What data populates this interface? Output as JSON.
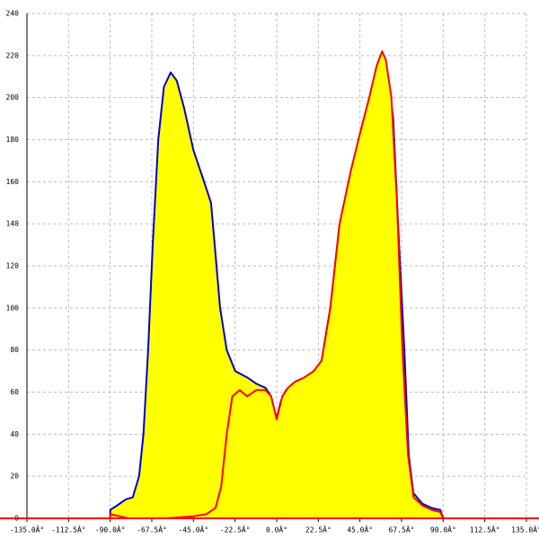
{
  "chart_data": {
    "type": "area",
    "xlim": [
      -135,
      135
    ],
    "ylim": [
      0,
      240
    ],
    "xticks": [
      {
        "value": -135,
        "label": "-135.0Â°"
      },
      {
        "value": -112.5,
        "label": "-112.5Â°"
      },
      {
        "value": -90,
        "label": "-90.0Â°"
      },
      {
        "value": -67.5,
        "label": "-67.5Â°"
      },
      {
        "value": -45,
        "label": "-45.0Â°"
      },
      {
        "value": -22.5,
        "label": "-22.5Â°"
      },
      {
        "value": 0,
        "label": "0.0Â°"
      },
      {
        "value": 22.5,
        "label": "22.5Â°"
      },
      {
        "value": 45,
        "label": "45.0Â°"
      },
      {
        "value": 67.5,
        "label": "67.5Â°"
      },
      {
        "value": 90,
        "label": "90.0Â°"
      },
      {
        "value": 112.5,
        "label": "112.5Â°"
      },
      {
        "value": 135,
        "label": "135.0Â°"
      }
    ],
    "yticks": [
      0,
      20,
      40,
      60,
      80,
      100,
      120,
      140,
      160,
      180,
      200,
      220,
      240
    ],
    "grid": true,
    "fill_color": "#ffff00",
    "series": [
      {
        "color": "#0000cc",
        "x": [
          -90,
          -90,
          -86.5,
          -81.6,
          -77.8,
          -74.4,
          -72,
          -69.5,
          -67,
          -64,
          -61,
          -57.3,
          -54,
          -50,
          -45,
          -40,
          -35.5,
          -33,
          -30.6,
          -27,
          -22.4,
          -16,
          -11,
          -6,
          -3,
          0,
          2,
          5,
          10,
          14.6,
          19.4,
          24.3,
          29,
          34,
          40,
          44.7,
          49.6,
          53.5,
          57,
          60,
          63,
          65.6,
          69,
          71.4,
          73.9,
          78.7,
          83.6,
          88.5,
          90
        ],
        "values": [
          0,
          4,
          6,
          9,
          10,
          20,
          40,
          80,
          130,
          180,
          205,
          212,
          208,
          195,
          175,
          162,
          150,
          125,
          100,
          80,
          70,
          67,
          64,
          62,
          58,
          47,
          55,
          61,
          62,
          64,
          67,
          75,
          100,
          140,
          160,
          178,
          195,
          208,
          212,
          210,
          190,
          140,
          80,
          30,
          12,
          7,
          5,
          4,
          0
        ]
      },
      {
        "color": "#ff0000",
        "x": [
          -90,
          -90,
          -85,
          -80,
          -60,
          -45,
          -38,
          -33,
          -30,
          -27,
          -24,
          -20,
          -16,
          -11,
          -6,
          -3,
          0,
          3,
          6,
          10,
          15,
          20,
          24.3,
          29,
          34,
          40,
          45,
          50,
          54,
          57,
          59,
          62,
          65,
          68,
          71,
          74,
          79,
          84,
          88.5,
          90
        ],
        "values": [
          0,
          2,
          1,
          0,
          0,
          1,
          2,
          5,
          15,
          40,
          58,
          61,
          58,
          61,
          61,
          58,
          47,
          58,
          62,
          65,
          67,
          70,
          75,
          100,
          140,
          165,
          183,
          200,
          215,
          222,
          218,
          200,
          150,
          80,
          30,
          10,
          6,
          4,
          3,
          0
        ]
      }
    ]
  }
}
